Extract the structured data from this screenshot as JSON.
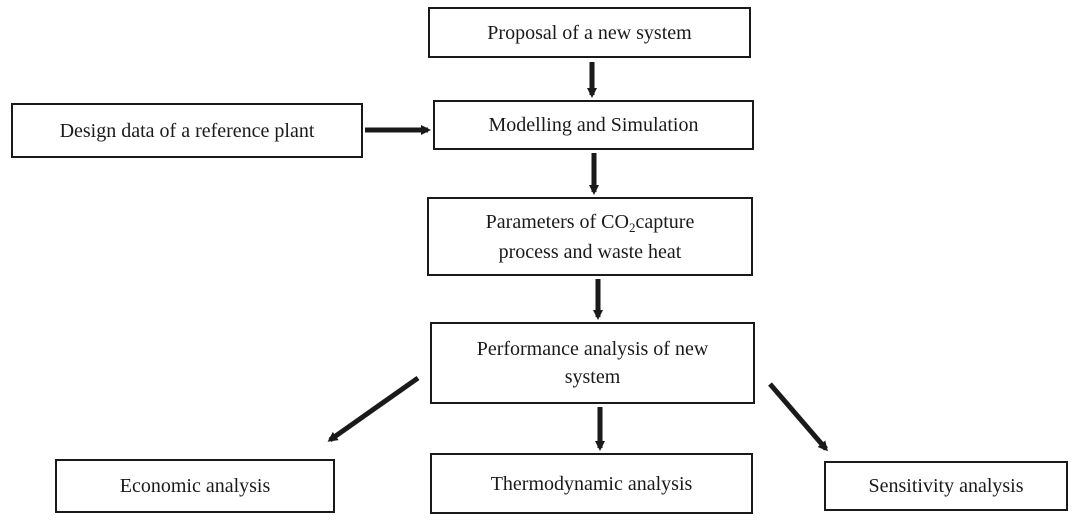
{
  "nodes": {
    "proposal": "Proposal of a new system",
    "design_data": "Design data of a reference plant",
    "modelling": "Modelling and Simulation",
    "parameters": {
      "line1_pre": "Parameters of CO",
      "line1_sub": "2",
      "line1_post": " capture",
      "line2": "process and waste heat"
    },
    "performance": {
      "line1": "Performance analysis of new",
      "line2": "system"
    },
    "economic": "Economic analysis",
    "thermodynamic": "Thermodynamic analysis",
    "sensitivity": "Sensitivity analysis"
  },
  "colors": {
    "stroke": "#1a1a1a",
    "background": "#ffffff"
  }
}
